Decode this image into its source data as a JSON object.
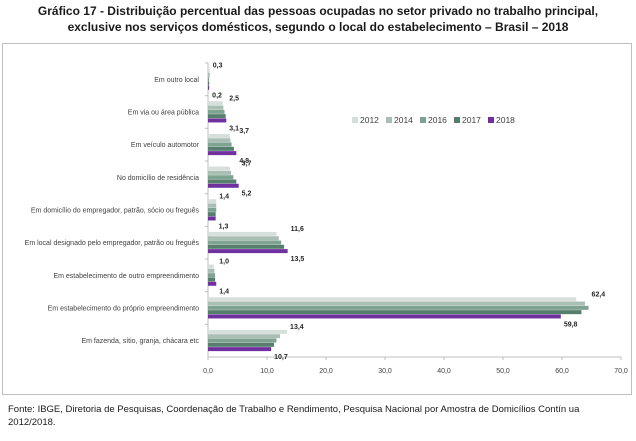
{
  "title_line1": "Gráfico  17 - Distribuição percentual das pessoas ocupadas no setor privado no trabalho principal,",
  "title_line2": "exclusive nos serviços domésticos, segundo o local do estabelecimento  – Brasil – 2018",
  "source": "Fonte: IBGE, Diretoria de Pesquisas, Coordenação de Trabalho e Rendimento, Pesquisa Nacional por Amostra de Domicílios Contín ua 2012/2018.",
  "chart_data": {
    "type": "bar",
    "orientation": "horizontal",
    "categories": [
      "Em outro local",
      "Em via ou área pública",
      "Em veículo automotor",
      "No domicílio de residência",
      "Em domicílio do empregador, patrão, sócio ou freguês",
      "Em local designado pelo empregador, patrão ou freguês",
      "Em estabelecimento de outro empreendimento",
      "Em estabelecimento do próprio empreendimento",
      "Em fazenda, sítio, granja, chácara etc"
    ],
    "series": [
      {
        "name": "2012",
        "color": "#d6dfd9",
        "values": [
          0.3,
          2.5,
          3.7,
          3.7,
          1.4,
          11.6,
          1.0,
          62.4,
          13.4
        ]
      },
      {
        "name": "2014",
        "color": "#a9bfb3",
        "values": [
          0.3,
          2.6,
          3.8,
          3.9,
          1.4,
          12.0,
          1.1,
          63.9,
          12.2
        ]
      },
      {
        "name": "2016",
        "color": "#7fa392",
        "values": [
          0.2,
          2.8,
          4.0,
          4.3,
          1.4,
          12.4,
          1.2,
          64.5,
          11.6
        ]
      },
      {
        "name": "2017",
        "color": "#557f6c",
        "values": [
          0.2,
          3.0,
          4.4,
          4.8,
          1.3,
          12.9,
          1.2,
          63.3,
          11.2
        ]
      },
      {
        "name": "2018",
        "color": "#7030a0",
        "values": [
          0.2,
          3.1,
          4.8,
          5.2,
          1.3,
          13.5,
          1.4,
          59.8,
          10.7
        ]
      }
    ],
    "data_labels": {
      "first": [
        "0,3",
        "2,5",
        "3,7",
        "3,7",
        "1,4",
        "11,6",
        "1,0",
        "62,4",
        "13,4"
      ],
      "last": [
        "0,2",
        "3,1",
        "4,8",
        "5,2",
        "1,3",
        "13,5",
        "1,4",
        "59,8",
        "10,7"
      ]
    },
    "xlim": [
      0,
      70
    ],
    "x_ticks": [
      "0,0",
      "10,0",
      "20,0",
      "30,0",
      "40,0",
      "50,0",
      "60,0",
      "70,0"
    ],
    "legend": "right",
    "grid": false
  }
}
